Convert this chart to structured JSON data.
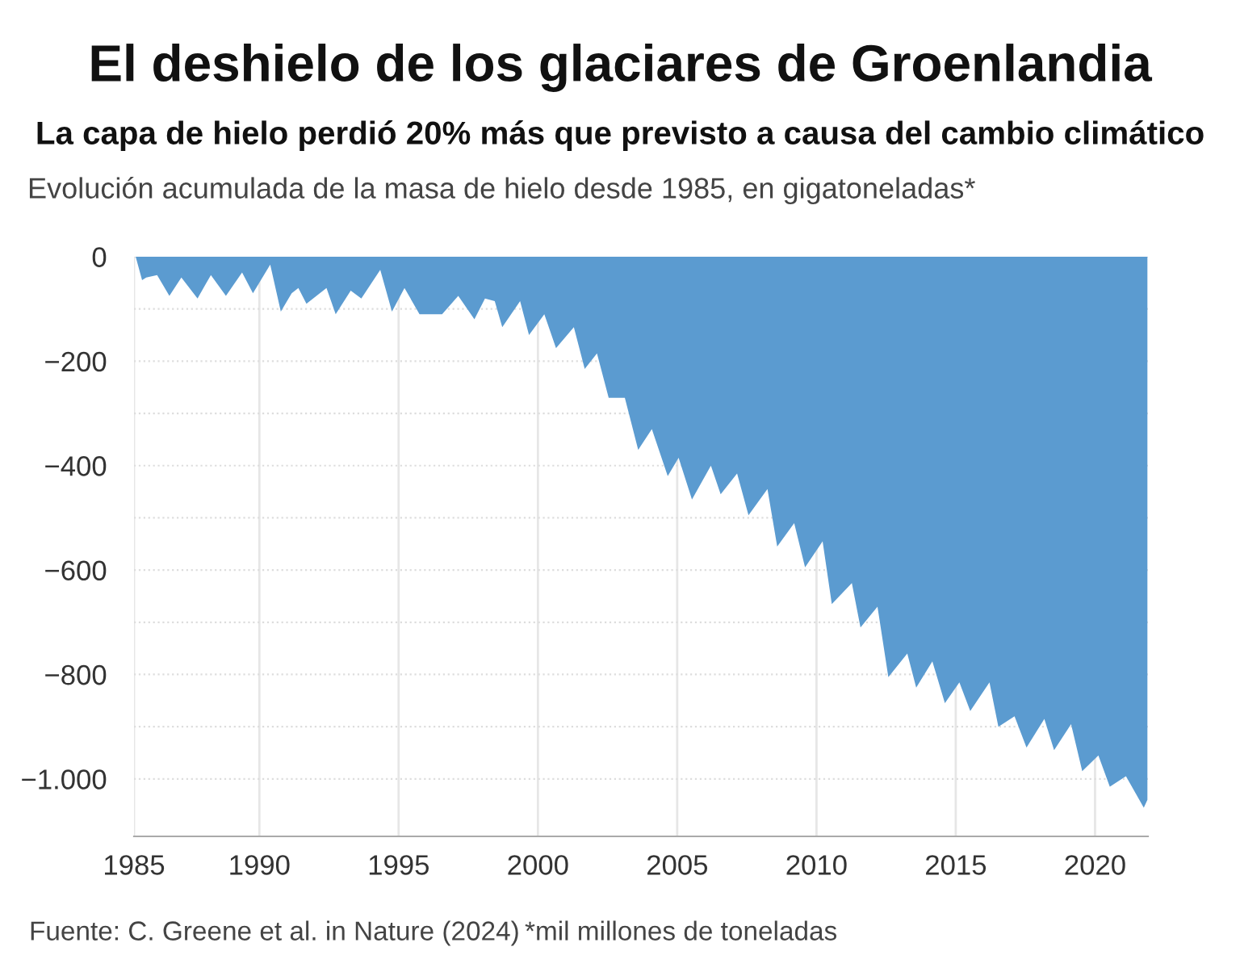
{
  "chart_data": {
    "type": "area",
    "title": "El deshielo de los glaciares de Groenlandia",
    "subtitle": "La capa de hielo perdió 20% más que previsto a causa del cambio climático",
    "ylabel": "Evolución acumulada de la masa de hielo desde 1985, en gigatoneladas*",
    "x": [
      1985.56,
      1985.79,
      1985.94,
      1986.33,
      1986.77,
      1987.2,
      1987.78,
      1988.26,
      1988.8,
      1989.38,
      1989.77,
      1990.39,
      1990.77,
      1991.16,
      1991.4,
      1991.69,
      1992.41,
      1992.74,
      1993.28,
      1993.66,
      1994.34,
      1994.76,
      1995.21,
      1995.75,
      1996.56,
      1997.14,
      1997.72,
      1998.1,
      1998.45,
      1998.72,
      1999.36,
      1999.68,
      2000.23,
      2000.65,
      2001.29,
      2001.68,
      2002.12,
      2002.54,
      2003.12,
      2003.6,
      2004.09,
      2004.66,
      2005.05,
      2005.53,
      2006.21,
      2006.56,
      2007.15,
      2007.56,
      2008.24,
      2008.59,
      2009.2,
      2009.59,
      2010.22,
      2010.55,
      2011.27,
      2011.58,
      2012.19,
      2012.58,
      2013.26,
      2013.58,
      2014.16,
      2014.61,
      2015.13,
      2015.52,
      2016.21,
      2016.53,
      2017.11,
      2017.54,
      2018.18,
      2018.53,
      2019.14,
      2019.54,
      2020.12,
      2020.53,
      2021.11,
      2021.75,
      2021.88
    ],
    "series": [
      {
        "color": "#5b9bd0",
        "values": [
          0,
          -45,
          -40,
          -35,
          -75,
          -40,
          -80,
          -35,
          -75,
          -30,
          -70,
          -15,
          -105,
          -70,
          -60,
          -90,
          -60,
          -110,
          -65,
          -80,
          -25,
          -105,
          -60,
          -110,
          -110,
          -75,
          -120,
          -80,
          -85,
          -135,
          -85,
          -150,
          -110,
          -175,
          -135,
          -215,
          -185,
          -270,
          -270,
          -370,
          -330,
          -420,
          -385,
          -465,
          -400,
          -455,
          -415,
          -495,
          -445,
          -555,
          -510,
          -595,
          -545,
          -665,
          -625,
          -710,
          -670,
          -805,
          -760,
          -825,
          -775,
          -855,
          -815,
          -870,
          -815,
          -900,
          -880,
          -940,
          -885,
          -945,
          -895,
          -985,
          -955,
          -1015,
          -995,
          -1055,
          -1040
        ]
      }
    ],
    "xlim": [
      1985.5,
      2021.9
    ],
    "xticks": [
      {
        "value": 1985.5,
        "label": "1985"
      },
      1990,
      1995,
      2000,
      2005,
      2010,
      2015,
      2020
    ],
    "ylim": [
      -1110,
      0
    ],
    "yticks": [
      {
        "value": 0,
        "label": "0"
      },
      {
        "value": -100,
        "label": null
      },
      {
        "value": -200,
        "label": "−200"
      },
      {
        "value": -300,
        "label": null
      },
      {
        "value": -400,
        "label": "−400"
      },
      {
        "value": -500,
        "label": null
      },
      {
        "value": -600,
        "label": "−600"
      },
      {
        "value": -700,
        "label": null
      },
      {
        "value": -800,
        "label": "−800"
      },
      {
        "value": -900,
        "label": null
      },
      {
        "value": -1000,
        "label": "−1.000"
      }
    ],
    "grid": true,
    "annotations": [
      "Fuente: C. Greene et al. in Nature (2024)",
      "*mil millones de toneladas"
    ]
  }
}
